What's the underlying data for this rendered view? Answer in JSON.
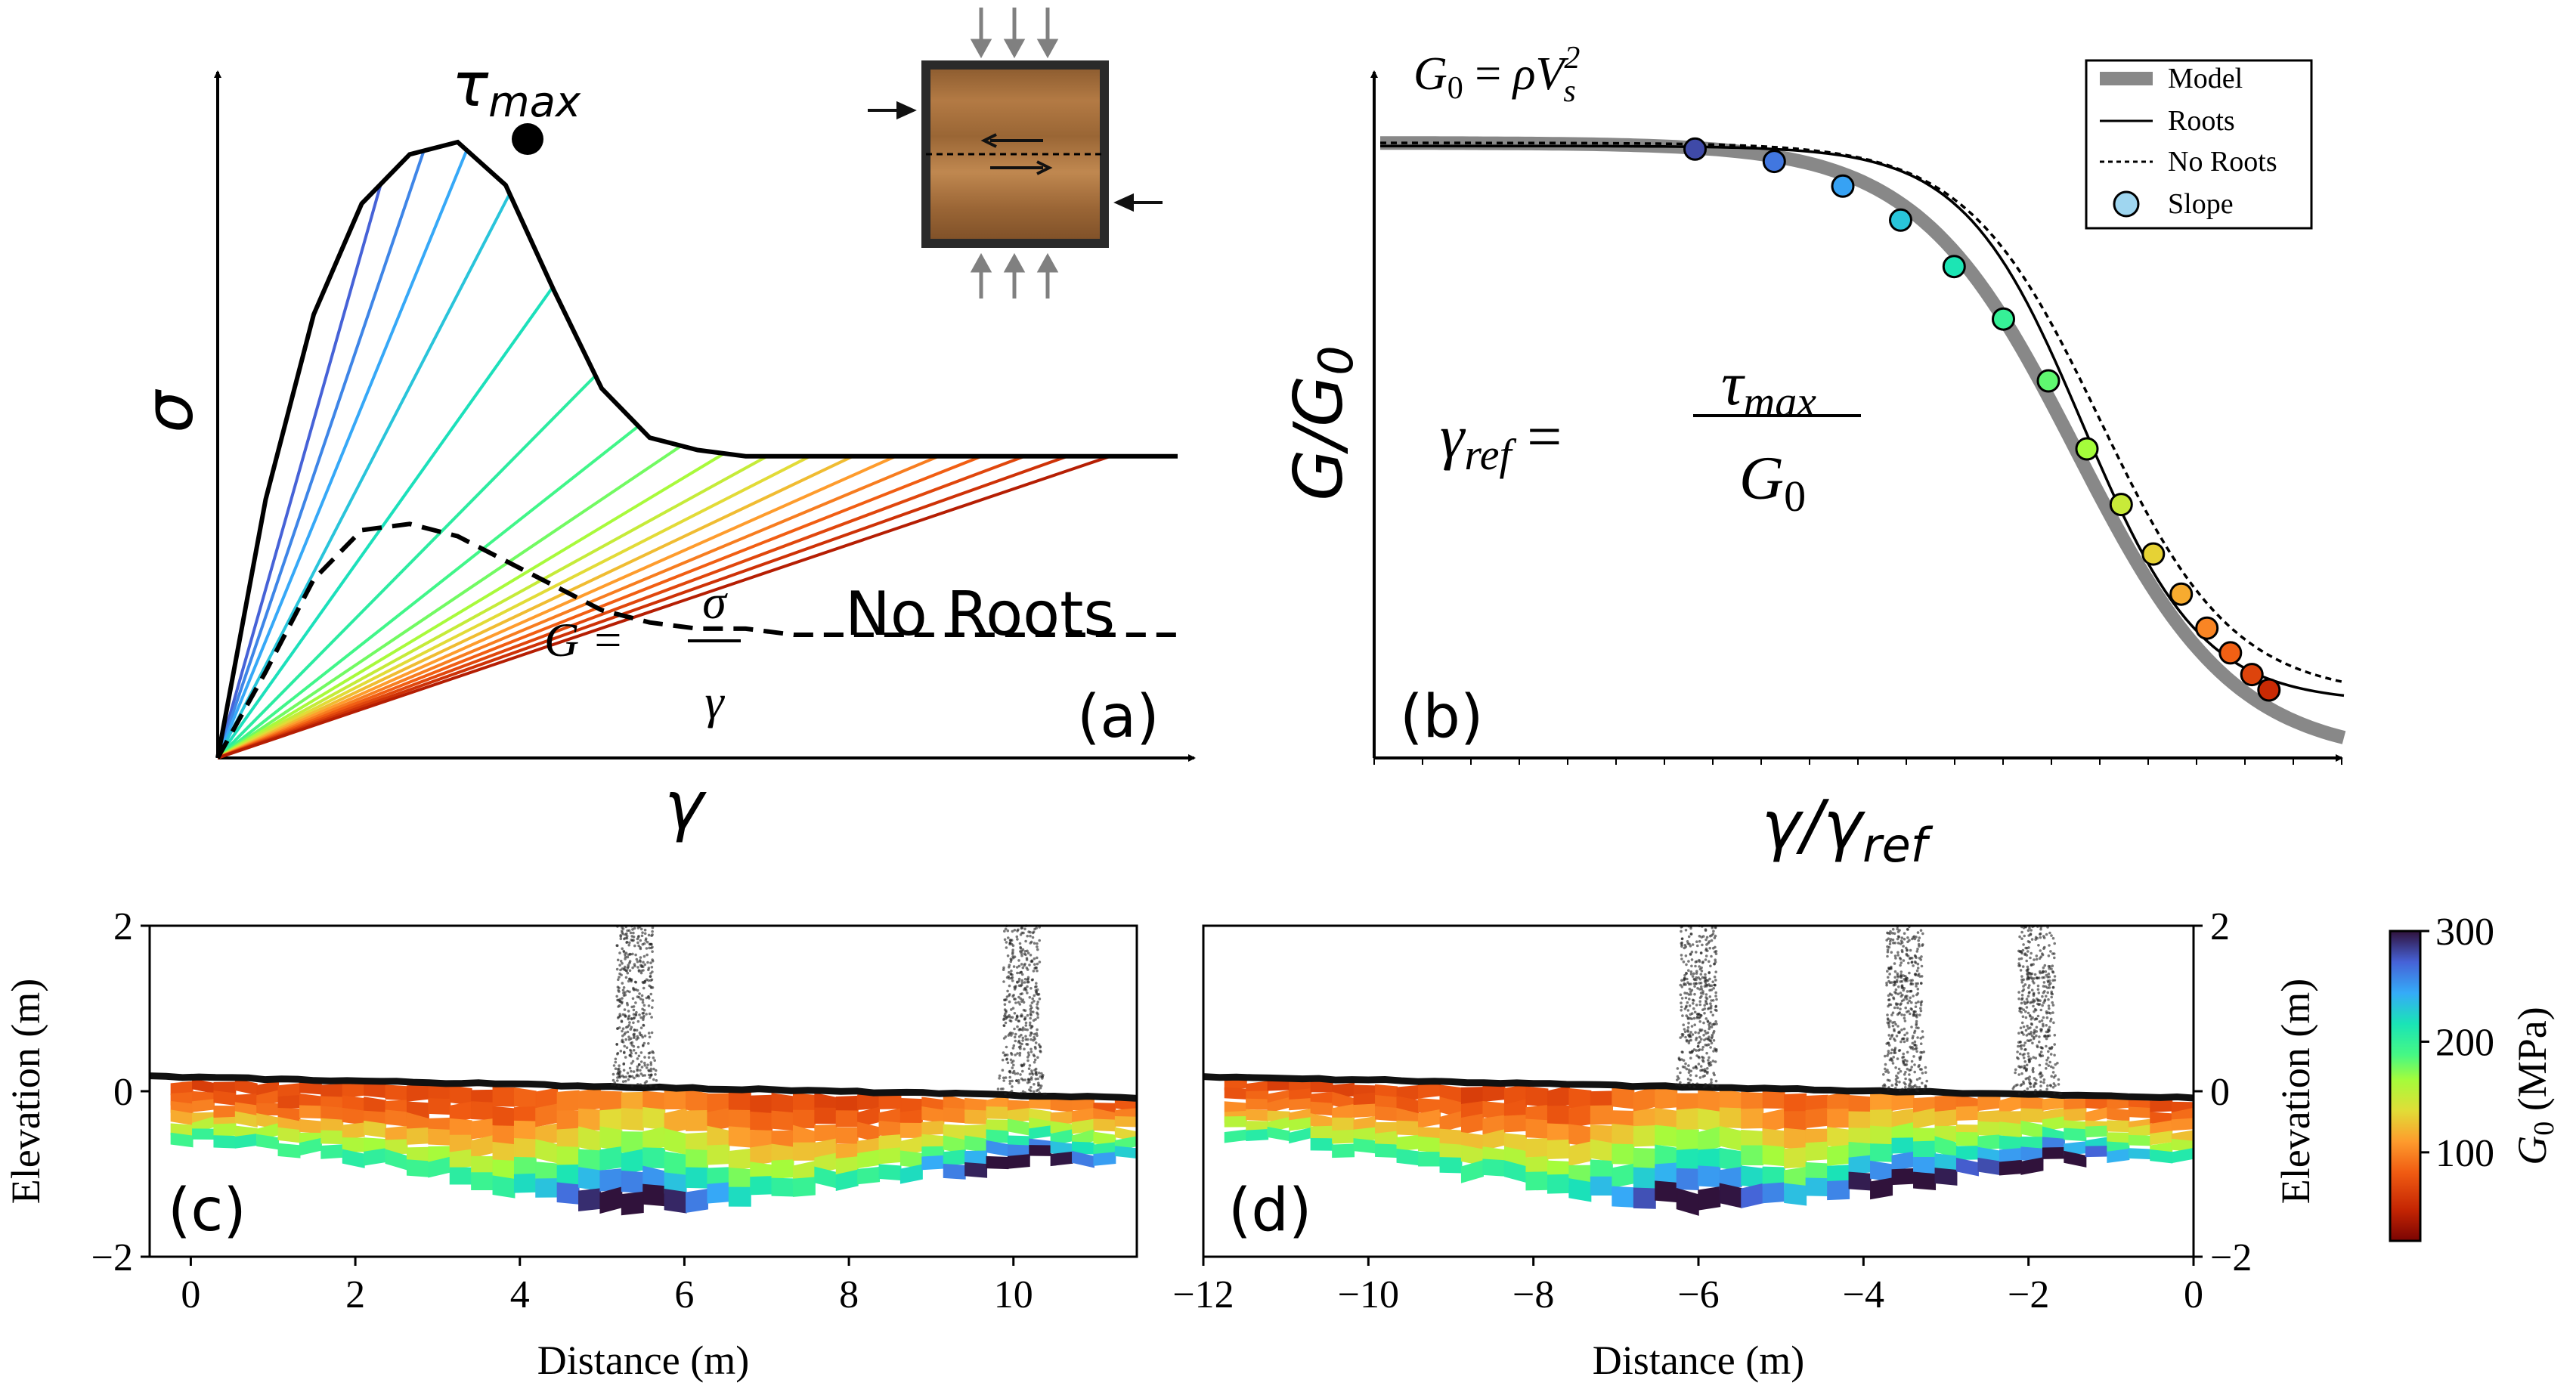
{
  "panel_a": {
    "tau_label": "τmax",
    "tau_sub": "max",
    "x_label": "γ",
    "y_label": "σ",
    "g_formula_lhs": "G =",
    "g_formula_num": "σ",
    "g_formula_den": "γ",
    "no_roots_label": "No Roots",
    "panel_tag": "(a)"
  },
  "panel_b": {
    "g0_formula": "G0 = ρVs²",
    "gref_formula_lhs": "γref =",
    "gref_formula_num": "τmax",
    "gref_formula_den": "G0",
    "y_label": "G/G0",
    "x_label": "γ/γref",
    "panel_tag": "(b)",
    "legend": [
      {
        "label": "Model",
        "style": "thick-gray"
      },
      {
        "label": "Roots",
        "style": "solid"
      },
      {
        "label": "No Roots",
        "style": "dotted"
      },
      {
        "label": "Slope",
        "style": "marker"
      }
    ]
  },
  "panel_c": {
    "panel_tag": "(c)",
    "x_label": "Distance (m)",
    "y_label": "Elevation (m)",
    "x_ticks": [
      "0",
      "2",
      "4",
      "6",
      "8",
      "10"
    ],
    "y_ticks": [
      "2",
      "0",
      "−2"
    ]
  },
  "panel_d": {
    "panel_tag": "(d)",
    "x_label": "Distance (m)",
    "y_label": "Elevation (m)",
    "x_ticks": [
      "−12",
      "−10",
      "−8",
      "−6",
      "−4",
      "−2",
      "0"
    ],
    "y_ticks": [
      "2",
      "0",
      "−2"
    ]
  },
  "colorbar": {
    "label": "G0 (MPa)",
    "ticks": [
      "300",
      "200",
      "100"
    ]
  },
  "chart_data": [
    {
      "type": "line",
      "panel": "a",
      "xlabel": "γ",
      "ylabel": "σ",
      "series": [
        {
          "name": "",
          "style": "solid-black",
          "x": [
            0,
            0.05,
            0.1,
            0.15,
            0.2,
            0.25,
            0.3,
            0.35,
            0.4,
            0.45,
            0.5,
            0.55,
            0.6,
            0.65,
            0.7,
            0.75,
            0.8,
            0.85,
            0.9,
            0.95,
            1.0
          ],
          "y": [
            0,
            0.42,
            0.72,
            0.9,
            0.98,
            1.0,
            0.93,
            0.76,
            0.6,
            0.52,
            0.5,
            0.49,
            0.49,
            0.49,
            0.49,
            0.49,
            0.49,
            0.49,
            0.49,
            0.49,
            0.49
          ]
        },
        {
          "name": "No Roots",
          "style": "dashed-black",
          "x": [
            0,
            0.05,
            0.1,
            0.15,
            0.2,
            0.25,
            0.3,
            0.35,
            0.4,
            0.45,
            0.5,
            0.55,
            0.6,
            0.7,
            0.8,
            0.9,
            1.0
          ],
          "y": [
            0,
            0.14,
            0.29,
            0.37,
            0.38,
            0.36,
            0.32,
            0.28,
            0.24,
            0.22,
            0.21,
            0.21,
            0.2,
            0.2,
            0.2,
            0.2,
            0.2
          ]
        }
      ],
      "secant_lines_count": 18
    },
    {
      "type": "line",
      "panel": "b",
      "xlabel": "γ/γref",
      "ylabel": "G/G0",
      "series": [
        {
          "name": "Model",
          "style": "thick-gray"
        },
        {
          "name": "Roots",
          "style": "solid"
        },
        {
          "name": "No Roots",
          "style": "dotted"
        },
        {
          "name": "Slope",
          "style": "marker",
          "x": [
            -1.73,
            -1.36,
            -1.04,
            -0.77,
            -0.52,
            -0.29,
            -0.08,
            0.1,
            0.26,
            0.41,
            0.54,
            0.66,
            0.77,
            0.87,
            0.95
          ],
          "y": [
            0.985,
            0.965,
            0.925,
            0.87,
            0.795,
            0.71,
            0.61,
            0.5,
            0.41,
            0.33,
            0.265,
            0.21,
            0.17,
            0.135,
            0.11
          ]
        }
      ]
    },
    {
      "type": "heatmap",
      "panel": "c",
      "xlabel": "Distance (m)",
      "ylabel": "Elevation (m)",
      "xlim": [
        -0.5,
        11.5
      ],
      "ylim": [
        -2,
        2
      ],
      "trees_at_x": [
        5.4,
        10.1
      ],
      "colorbar": "G0 (MPa)",
      "clim": [
        20,
        300
      ]
    },
    {
      "type": "heatmap",
      "panel": "d",
      "xlabel": "Distance (m)",
      "ylabel": "Elevation (m)",
      "xlim": [
        -12,
        0
      ],
      "ylim": [
        -2,
        2
      ],
      "trees_at_x": [
        -6.0,
        -3.5,
        -1.9
      ],
      "colorbar": "G0 (MPa)",
      "clim": [
        20,
        300
      ]
    }
  ]
}
